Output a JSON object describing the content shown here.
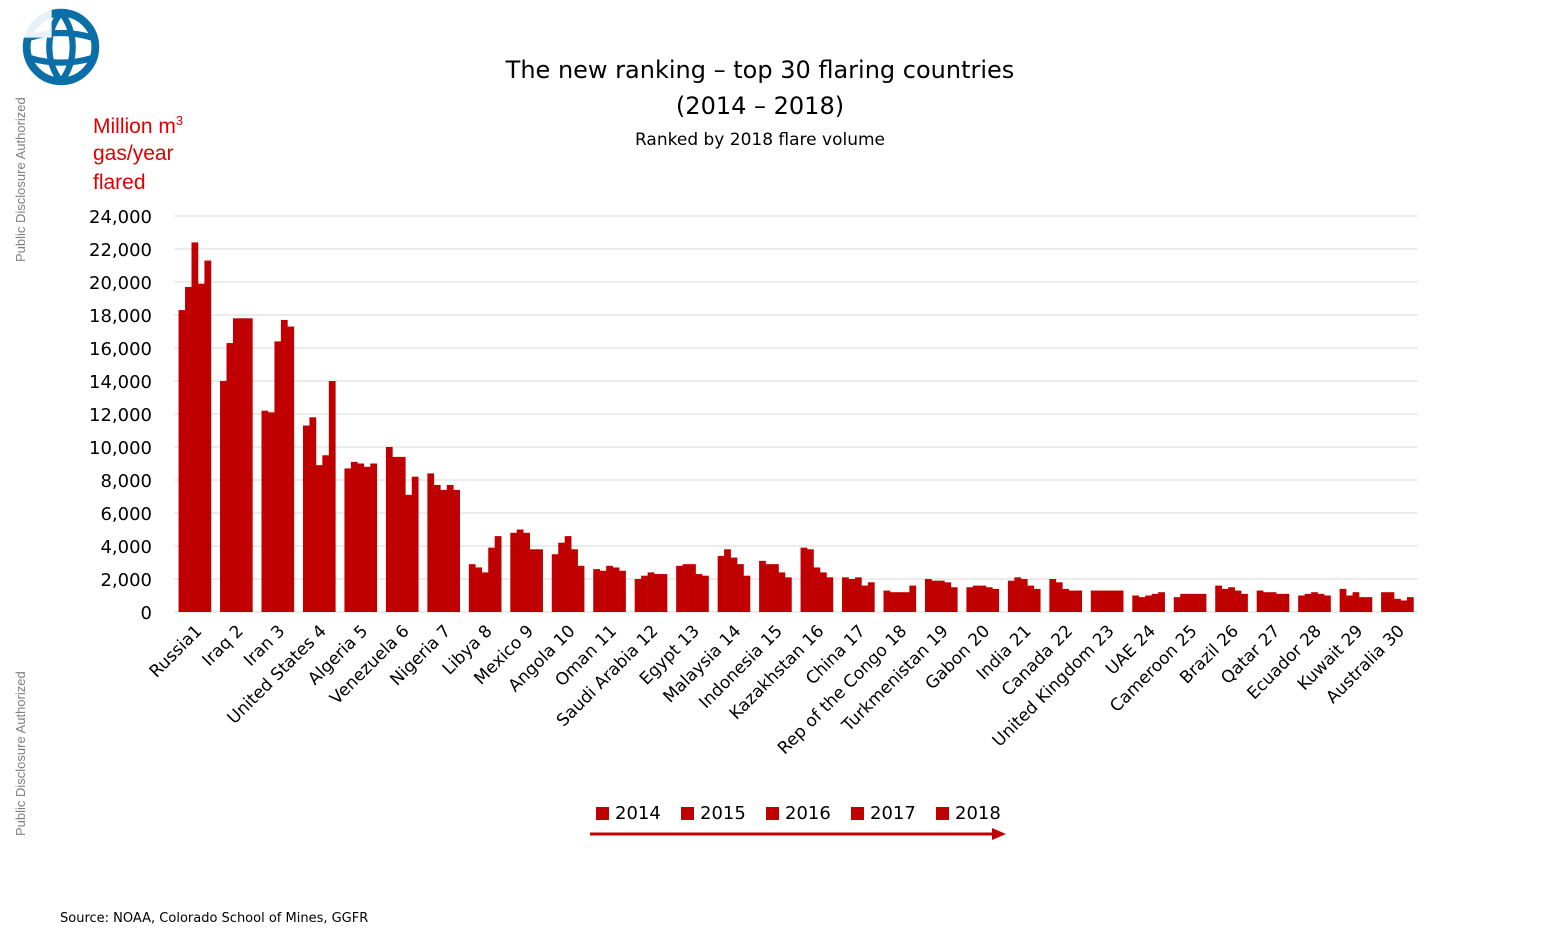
{
  "watermark": "Public Disclosure Authorized",
  "title_line1": "The new ranking – top 30 flaring countries",
  "title_line2": "(2014 – 2018)",
  "subtitle": "Ranked by 2018 flare volume",
  "ylabel_line1": "Million m",
  "ylabel_sup": "3",
  "ylabel_line2": "gas/year",
  "ylabel_line3": "flared",
  "source": "Source: NOAA, Colorado School of Mines, GGFR",
  "colors": {
    "bar": "#c00000",
    "grid": "#d9d9d9",
    "axis_label": "#e00000"
  },
  "chart_data": {
    "type": "bar",
    "ylim": [
      0,
      24000
    ],
    "yticks": [
      0,
      2000,
      4000,
      6000,
      8000,
      10000,
      12000,
      14000,
      16000,
      18000,
      20000,
      22000,
      24000
    ],
    "ytick_labels": [
      "0",
      "2,000",
      "4,000",
      "6,000",
      "8,000",
      "10,000",
      "12,000",
      "14,000",
      "16,000",
      "18,000",
      "20,000",
      "22,000",
      "24,000"
    ],
    "grid": true,
    "legend_position": "bottom",
    "categories": [
      "Russia1",
      "Iraq 2",
      "Iran 3",
      "United States 4",
      "Algeria 5",
      "Venezuela 6",
      "Nigeria 7",
      "Libya 8",
      "Mexico 9",
      "Angola 10",
      "Oman 11",
      "Saudi Arabia 12",
      "Egypt 13",
      "Malaysia 14",
      "Indonesia 15",
      "Kazakhstan 16",
      "China 17",
      "Rep of the Congo 18",
      "Turkmenistan 19",
      "Gabon 20",
      "India 21",
      "Canada 22",
      "United Kingdom 23",
      "UAE 24",
      "Cameroon 25",
      "Brazil 26",
      "Qatar 27",
      "Ecuador 28",
      "Kuwait 29",
      "Australia 30"
    ],
    "series": [
      {
        "name": "2014",
        "values": [
          18300,
          14000,
          12200,
          11300,
          8700,
          10000,
          8400,
          2900,
          4800,
          3500,
          2600,
          2000,
          2800,
          3400,
          3100,
          3900,
          2100,
          1300,
          2000,
          1500,
          1900,
          2000,
          1300,
          1000,
          900,
          1600,
          1300,
          1000,
          1400,
          1200
        ]
      },
      {
        "name": "2015",
        "values": [
          19700,
          16300,
          12100,
          11800,
          9100,
          9400,
          7700,
          2700,
          5000,
          4200,
          2500,
          2200,
          2900,
          3800,
          2900,
          3800,
          2000,
          1200,
          1900,
          1600,
          2100,
          1800,
          1300,
          900,
          1100,
          1400,
          1200,
          1100,
          1000,
          1200
        ]
      },
      {
        "name": "2016",
        "values": [
          22400,
          17800,
          16400,
          8900,
          9000,
          9400,
          7400,
          2400,
          4800,
          4600,
          2800,
          2400,
          2900,
          3300,
          2900,
          2700,
          2100,
          1200,
          1900,
          1600,
          2000,
          1400,
          1300,
          1000,
          1100,
          1500,
          1200,
          1200,
          1200,
          800
        ]
      },
      {
        "name": "2017",
        "values": [
          19900,
          17800,
          17700,
          9500,
          8800,
          7100,
          7700,
          3900,
          3800,
          3800,
          2700,
          2300,
          2300,
          2900,
          2400,
          2400,
          1600,
          1200,
          1800,
          1500,
          1600,
          1300,
          1300,
          1100,
          1100,
          1300,
          1100,
          1100,
          900,
          700
        ]
      },
      {
        "name": "2018",
        "values": [
          21300,
          17800,
          17300,
          14000,
          9000,
          8200,
          7400,
          4600,
          3800,
          2800,
          2500,
          2300,
          2200,
          2200,
          2100,
          2100,
          1800,
          1600,
          1500,
          1400,
          1400,
          1300,
          1300,
          1200,
          1100,
          1100,
          1100,
          1000,
          900,
          900
        ]
      }
    ]
  }
}
